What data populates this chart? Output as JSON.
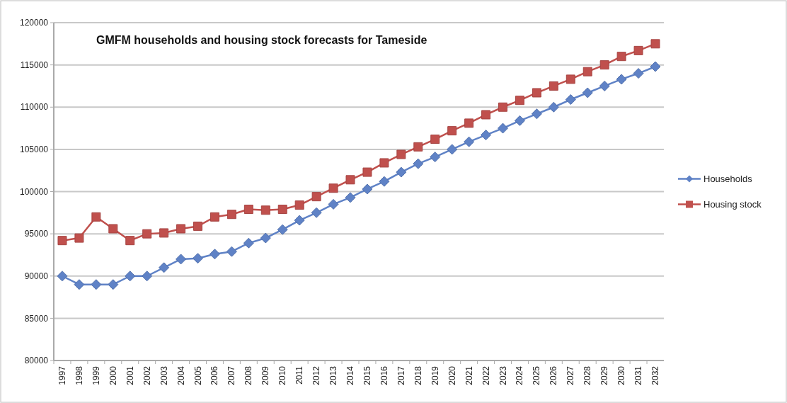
{
  "chart_data": {
    "type": "line",
    "title": "GMFM households and housing stock forecasts for Tameside",
    "categories": [
      "1997",
      "1998",
      "1999",
      "2000",
      "2001",
      "2002",
      "2003",
      "2004",
      "2005",
      "2006",
      "2007",
      "2008",
      "2009",
      "2010",
      "2011",
      "2012",
      "2013",
      "2014",
      "2015",
      "2016",
      "2017",
      "2018",
      "2019",
      "2020",
      "2021",
      "2022",
      "2023",
      "2024",
      "2025",
      "2026",
      "2027",
      "2028",
      "2029",
      "2030",
      "2031",
      "2032"
    ],
    "series": [
      {
        "name": "Households",
        "color": "#5f82c6",
        "marker": "diamond",
        "values": [
          90000,
          89000,
          89000,
          89000,
          90000,
          90000,
          91000,
          92000,
          92100,
          92600,
          92900,
          93900,
          94500,
          95500,
          96600,
          97500,
          98500,
          99300,
          100300,
          101200,
          102300,
          103300,
          104100,
          105000,
          105900,
          106700,
          107500,
          108400,
          109200,
          110000,
          110900,
          111700,
          112500,
          113300,
          114000,
          114800
        ]
      },
      {
        "name": "Housing stock",
        "color": "#c0504d",
        "marker": "square",
        "values": [
          94200,
          94500,
          97000,
          95600,
          94200,
          95000,
          95100,
          95600,
          95900,
          97000,
          97300,
          97900,
          97800,
          97900,
          98400,
          99400,
          100400,
          101400,
          102300,
          103400,
          104400,
          105300,
          106200,
          107200,
          108100,
          109100,
          110000,
          110800,
          111700,
          112500,
          113300,
          114200,
          115000,
          116000,
          116700,
          117500
        ]
      }
    ],
    "ylim": [
      80000,
      120000
    ],
    "yticks": [
      80000,
      85000,
      90000,
      95000,
      100000,
      105000,
      110000,
      115000,
      120000
    ],
    "grid": "y",
    "legend": "right",
    "line_style": "solid"
  }
}
